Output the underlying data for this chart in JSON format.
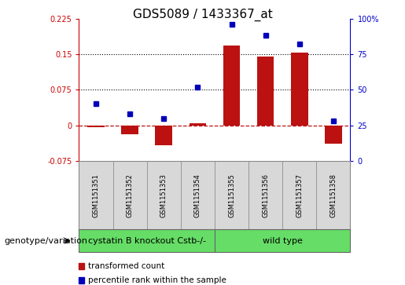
{
  "title": "GDS5089 / 1433367_at",
  "samples": [
    "GSM1151351",
    "GSM1151352",
    "GSM1151353",
    "GSM1151354",
    "GSM1151355",
    "GSM1151356",
    "GSM1151357",
    "GSM1151358"
  ],
  "transformed_count": [
    -0.003,
    -0.018,
    -0.042,
    0.005,
    0.168,
    0.145,
    0.153,
    -0.038
  ],
  "percentile_rank": [
    40,
    33,
    30,
    52,
    96,
    88,
    82,
    28
  ],
  "bar_color": "#bb1111",
  "dot_color": "#0000bb",
  "left_ylim": [
    -0.075,
    0.225
  ],
  "left_yticks": [
    -0.075,
    0.0,
    0.075,
    0.15,
    0.225
  ],
  "left_yticklabels": [
    "-0.075",
    "0",
    "0.075",
    "0.15",
    "0.225"
  ],
  "right_ylim": [
    0,
    100
  ],
  "right_yticks": [
    0,
    25,
    50,
    75,
    100
  ],
  "right_yticklabels": [
    "0",
    "25",
    "50",
    "75",
    "100%"
  ],
  "hlines": [
    0.075,
    0.15
  ],
  "zero_line": 0.0,
  "left_axis_color": "#cc0000",
  "right_axis_color": "#0000cc",
  "legend_items": [
    {
      "label": "transformed count",
      "color": "#bb1111"
    },
    {
      "label": "percentile rank within the sample",
      "color": "#0000bb"
    }
  ],
  "genotype_label": "genotype/variation",
  "group1_label": "cystatin B knockout Cstb-/-",
  "group2_label": "wild type",
  "group_color": "#66dd66",
  "title_fontsize": 11,
  "tick_fontsize": 7,
  "sample_fontsize": 6,
  "group_fontsize": 8,
  "legend_fontsize": 7.5,
  "genotype_fontsize": 8
}
